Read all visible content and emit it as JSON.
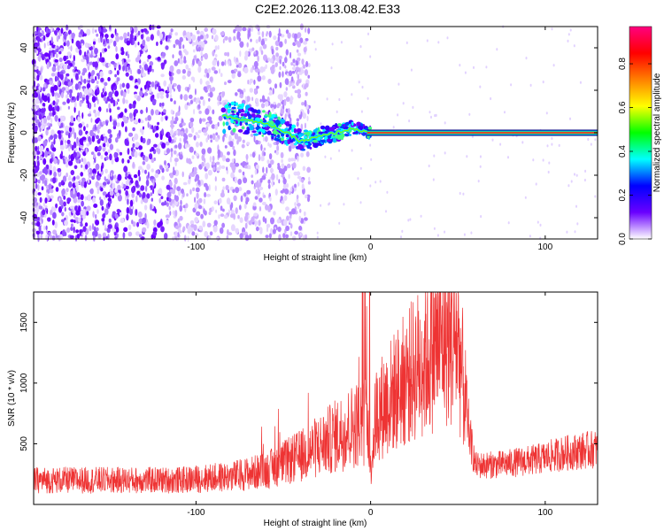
{
  "title": "C2E2.2026.113.08.42.E33",
  "colors": {
    "background": "#ffffff",
    "snr_line": "#ee3333",
    "spectrogram_noise": "#6a00ff",
    "ridge_peak": "#ff2020"
  },
  "colorbar": {
    "label": "Normalized spectral amplitude",
    "range": [
      0,
      0.97
    ],
    "ticks": [
      "0.0",
      "0.2",
      "0.4",
      "0.6",
      "0.8"
    ],
    "colormap": [
      "#ffffff",
      "#6a00ff",
      "#0000ff",
      "#00ffff",
      "#00ff00",
      "#ffff00",
      "#ff8000",
      "#ff0000",
      "#ff0080"
    ]
  },
  "chart_data": [
    {
      "type": "heatmap",
      "xlabel": "Height of straight line (km)",
      "ylabel": "Frequency (Hz)",
      "xlim": [
        -193,
        130
      ],
      "ylim": [
        -50,
        50
      ],
      "xticks": [
        "-100",
        "0",
        "100"
      ],
      "yticks": [
        "-40",
        "-20",
        "0",
        "20",
        "40"
      ],
      "grid": false,
      "description_points": {
        "ridge_frequency_hz": 0,
        "noise_region_x_range": [
          -193,
          -35
        ],
        "ridge_start_x": -85,
        "ridge_offset_hz": [
          {
            "x": -85,
            "y": 8
          },
          {
            "x": -70,
            "y": 6
          },
          {
            "x": -55,
            "y": 3
          },
          {
            "x": -40,
            "y": -4
          },
          {
            "x": -30,
            "y": -2
          },
          {
            "x": -20,
            "y": 0
          },
          {
            "x": -10,
            "y": 2
          },
          {
            "x": 0,
            "y": 0
          },
          {
            "x": 130,
            "y": 0
          }
        ]
      }
    },
    {
      "type": "line",
      "xlabel": "Height of straight line (km)",
      "ylabel": "SNR (10 * v/v)",
      "xlim": [
        -193,
        130
      ],
      "ylim": [
        0,
        1750
      ],
      "xticks": [
        "-100",
        "0",
        "100"
      ],
      "yticks": [
        "500",
        "1000",
        "1500"
      ],
      "grid": false,
      "series": [
        {
          "values_envelope": [
            {
              "x": -193,
              "y": 200
            },
            {
              "x": -150,
              "y": 200
            },
            {
              "x": -110,
              "y": 200
            },
            {
              "x": -80,
              "y": 230
            },
            {
              "x": -60,
              "y": 280
            },
            {
              "x": -40,
              "y": 400
            },
            {
              "x": -25,
              "y": 520
            },
            {
              "x": -10,
              "y": 650
            },
            {
              "x": -2,
              "y": 700
            },
            {
              "x": 0,
              "y": 300
            },
            {
              "x": 3,
              "y": 750
            },
            {
              "x": 15,
              "y": 950
            },
            {
              "x": 30,
              "y": 1200
            },
            {
              "x": 42,
              "y": 1380
            },
            {
              "x": 50,
              "y": 1350
            },
            {
              "x": 53,
              "y": 1000
            },
            {
              "x": 57,
              "y": 550
            },
            {
              "x": 60,
              "y": 320
            },
            {
              "x": 75,
              "y": 330
            },
            {
              "x": 95,
              "y": 370
            },
            {
              "x": 110,
              "y": 420
            },
            {
              "x": 130,
              "y": 460
            }
          ]
        }
      ]
    }
  ]
}
